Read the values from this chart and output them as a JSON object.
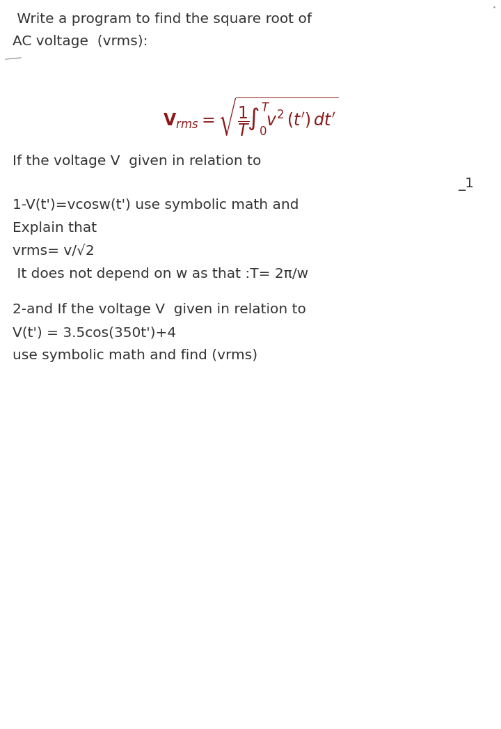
{
  "bg_color": "#ffffff",
  "text_color": "#333333",
  "formula_color": "#8B1A1A",
  "title_line1": " Write a program to find the square root of",
  "title_line2": "AC voltage  (vrms):",
  "line_intro": "If the voltage V  given in relation to",
  "label_1": "_1",
  "block1_line1": "1-V(t')=vcosw(t') use symbolic math and",
  "block1_line2": "Explain that",
  "block1_line3": "vrms= v/√2",
  "block1_line4": " It does not depend on w as that :T= 2π/w",
  "block2_line1": "2-and If the voltage V  given in relation to",
  "block2_line2": "V(t') = 3.5cos(350t')+4",
  "block2_line3": "use symbolic math and find (vrms)",
  "font_size_title": 14.5,
  "font_size_body": 14.5,
  "font_size_formula": 17,
  "fig_width": 7.2,
  "fig_height": 10.47,
  "dpi": 100
}
